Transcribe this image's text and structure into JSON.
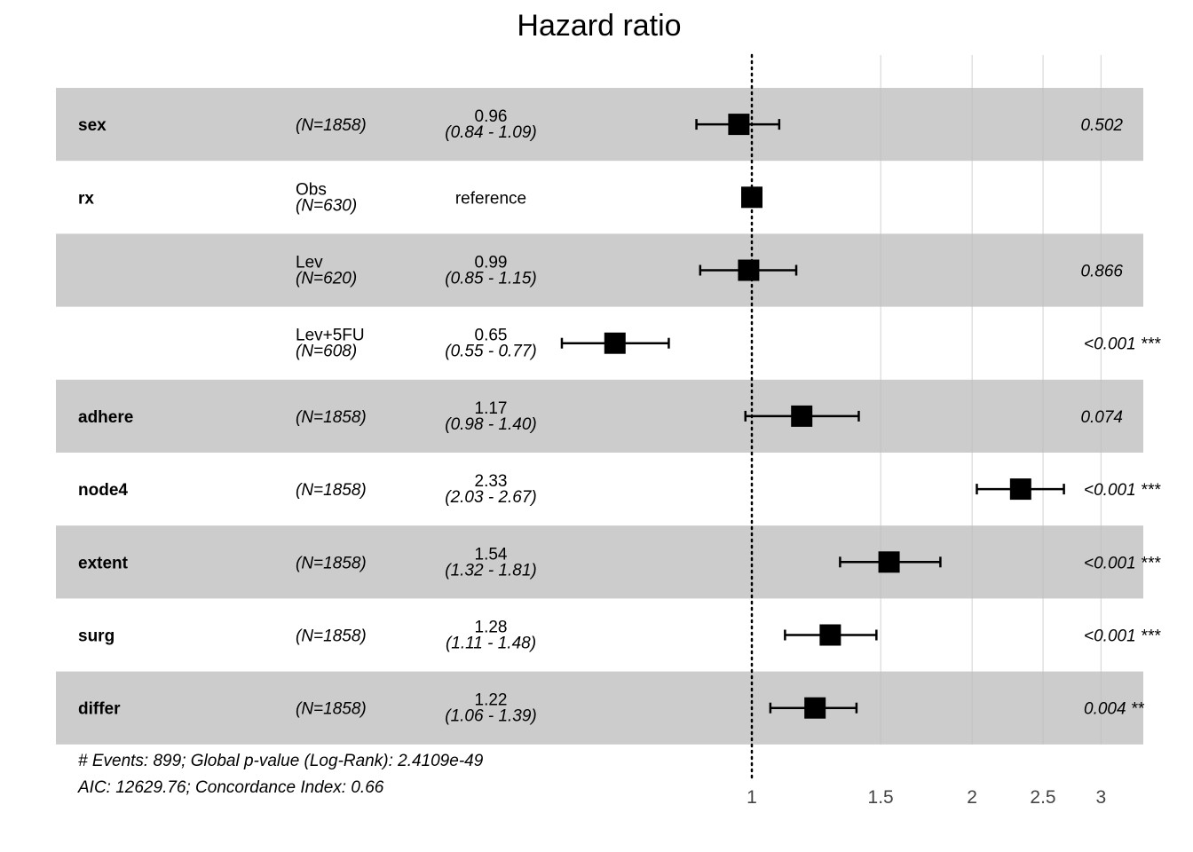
{
  "chart_data": {
    "type": "forest",
    "title": "Hazard ratio",
    "x_scale": "log",
    "xlim": [
      0.53,
      3.3
    ],
    "reference_line": 1,
    "x_ticks": [
      {
        "value": 1,
        "label": "1"
      },
      {
        "value": 1.5,
        "label": "1.5"
      },
      {
        "value": 2,
        "label": "2"
      },
      {
        "value": 2.5,
        "label": "2.5"
      },
      {
        "value": 3,
        "label": "3"
      }
    ],
    "rows": [
      {
        "variable": "sex",
        "level": "",
        "n": "(N=1858)",
        "hr": 0.96,
        "hr_label": "0.96",
        "ci": "(0.84 - 1.09)",
        "low": 0.84,
        "high": 1.09,
        "p": "0.502",
        "shaded": true
      },
      {
        "variable": "rx",
        "level": "Obs",
        "n": "(N=630)",
        "hr": 1.0,
        "hr_label": "reference",
        "ci": "",
        "low": null,
        "high": null,
        "p": "",
        "shaded": false
      },
      {
        "variable": "",
        "level": "Lev",
        "n": "(N=620)",
        "hr": 0.99,
        "hr_label": "0.99",
        "ci": "(0.85 - 1.15)",
        "low": 0.85,
        "high": 1.15,
        "p": "0.866",
        "shaded": true
      },
      {
        "variable": "",
        "level": "Lev+5FU",
        "n": "(N=608)",
        "hr": 0.65,
        "hr_label": "0.65",
        "ci": "(0.55 - 0.77)",
        "low": 0.55,
        "high": 0.77,
        "p": "<0.001 ***",
        "shaded": false
      },
      {
        "variable": "adhere",
        "level": "",
        "n": "(N=1858)",
        "hr": 1.17,
        "hr_label": "1.17",
        "ci": "(0.98 - 1.40)",
        "low": 0.98,
        "high": 1.4,
        "p": "0.074",
        "shaded": true
      },
      {
        "variable": "node4",
        "level": "",
        "n": "(N=1858)",
        "hr": 2.33,
        "hr_label": "2.33",
        "ci": "(2.03 - 2.67)",
        "low": 2.03,
        "high": 2.67,
        "p": "<0.001 ***",
        "shaded": false
      },
      {
        "variable": "extent",
        "level": "",
        "n": "(N=1858)",
        "hr": 1.54,
        "hr_label": "1.54",
        "ci": "(1.32 - 1.81)",
        "low": 1.32,
        "high": 1.81,
        "p": "<0.001 ***",
        "shaded": true
      },
      {
        "variable": "surg",
        "level": "",
        "n": "(N=1858)",
        "hr": 1.28,
        "hr_label": "1.28",
        "ci": "(1.11 - 1.48)",
        "low": 1.11,
        "high": 1.48,
        "p": "<0.001 ***",
        "shaded": false
      },
      {
        "variable": "differ",
        "level": "",
        "n": "(N=1858)",
        "hr": 1.22,
        "hr_label": "1.22",
        "ci": "(1.06 - 1.39)",
        "low": 1.06,
        "high": 1.39,
        "p": "0.004 **",
        "shaded": true
      }
    ],
    "footnotes": [
      "# Events: 899; Global p-value (Log-Rank): 2.4109e-49",
      "AIC: 12629.76; Concordance Index: 0.66"
    ],
    "colors": {
      "shade": "#cccccc",
      "marker": "#000000",
      "gridline": "#bdbdbd"
    }
  }
}
